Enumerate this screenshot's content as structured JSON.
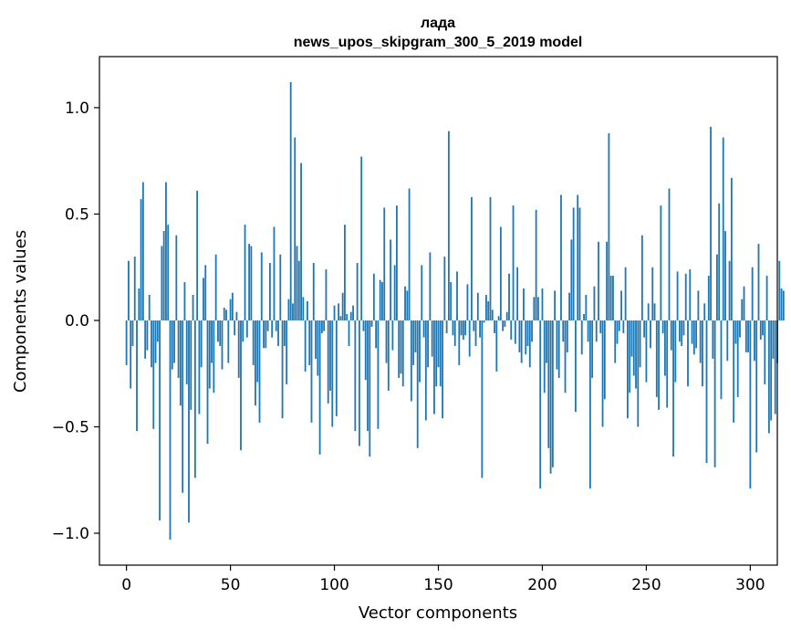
{
  "chart_data": {
    "type": "bar",
    "title": "лада",
    "subtitle": "news_upos_skipgram_300_5_2019 model",
    "xlabel": "Vector components",
    "ylabel": "Components values",
    "xlim": [
      -13,
      313
    ],
    "ylim": [
      -1.15,
      1.24
    ],
    "x_ticks": [
      0,
      50,
      100,
      150,
      200,
      250,
      300
    ],
    "y_ticks": [
      -1.0,
      -0.5,
      0.0,
      0.5,
      1.0
    ],
    "x_tick_labels": [
      "0",
      "50",
      "100",
      "150",
      "200",
      "250",
      "300"
    ],
    "y_tick_labels": [
      "−1.0",
      "−0.5",
      "0.0",
      "0.5",
      "1.0"
    ],
    "bar_color": "#1f77b4",
    "grid": false,
    "values": [
      -0.21,
      0.28,
      -0.32,
      -0.12,
      0.3,
      -0.52,
      0.15,
      0.57,
      0.65,
      -0.18,
      -0.14,
      0.12,
      -0.22,
      -0.51,
      -0.2,
      -0.1,
      -0.94,
      0.35,
      0.42,
      0.65,
      0.45,
      -1.03,
      -0.23,
      -0.2,
      0.4,
      -0.27,
      -0.4,
      -0.81,
      0.18,
      -0.3,
      -0.95,
      -0.42,
      0.12,
      -0.74,
      0.61,
      -0.44,
      -0.22,
      0.2,
      0.26,
      -0.58,
      -0.32,
      -0.2,
      -0.34,
      0.31,
      -0.1,
      -0.12,
      -0.23,
      0.06,
      0.05,
      -0.2,
      0.1,
      0.13,
      -0.07,
      0.04,
      -0.27,
      -0.61,
      -0.1,
      0.45,
      -0.08,
      0.36,
      0.35,
      -0.21,
      -0.4,
      -0.29,
      -0.48,
      0.32,
      -0.13,
      -0.13,
      -0.05,
      0.27,
      -0.08,
      0.44,
      -0.05,
      -0.12,
      0.31,
      -0.46,
      -0.12,
      -0.3,
      0.1,
      1.12,
      0.08,
      0.86,
      0.35,
      0.28,
      0.74,
      0.11,
      -0.24,
      0.09,
      -0.21,
      -0.48,
      0.27,
      -0.18,
      -0.26,
      -0.63,
      -0.06,
      -0.05,
      0.24,
      -0.39,
      -0.33,
      -0.5,
      0.07,
      -0.45,
      0.08,
      0.02,
      0.13,
      0.45,
      0.03,
      -0.12,
      0.04,
      0.07,
      -0.52,
      0.27,
      -0.59,
      0.77,
      -0.05,
      -0.28,
      -0.52,
      -0.64,
      -0.03,
      0.22,
      -0.13,
      -0.51,
      0.19,
      0.18,
      0.53,
      -0.2,
      -0.33,
      0.38,
      -0.14,
      0.26,
      0.54,
      -0.27,
      -0.25,
      -0.31,
      0.16,
      0.14,
      0.62,
      -0.38,
      -0.21,
      -0.15,
      -0.6,
      -0.29,
      0.26,
      -0.08,
      -0.47,
      -0.22,
      0.32,
      -0.17,
      -0.44,
      -0.31,
      -0.22,
      -0.31,
      -0.46,
      0.3,
      -0.06,
      0.89,
      0.18,
      -0.07,
      -0.12,
      0.23,
      -0.21,
      -0.07,
      -0.09,
      -0.07,
      0.17,
      -0.17,
      0.58,
      -0.05,
      -0.12,
      0.13,
      -0.08,
      -0.74,
      -0.01,
      0.12,
      0.09,
      0.58,
      0.05,
      -0.06,
      -0.24,
      0.02,
      0.44,
      -0.05,
      -0.03,
      0.04,
      0.22,
      -0.09,
      0.54,
      -0.11,
      0.25,
      -0.15,
      -0.2,
      0.15,
      -0.16,
      -0.12,
      -0.22,
      -0.1,
      0.11,
      0.52,
      0.11,
      -0.79,
      0.15,
      -0.34,
      -0.2,
      -0.6,
      -0.72,
      -0.69,
      0.14,
      -0.23,
      -0.27,
      0.59,
      -0.1,
      -0.34,
      -0.15,
      0.13,
      0.38,
      0.53,
      -0.43,
      0.59,
      0.53,
      -0.16,
      0.03,
      0.12,
      -0.1,
      -0.79,
      -0.27,
      0.16,
      -0.1,
      0.37,
      -0.06,
      -0.5,
      -0.37,
      0.37,
      0.88,
      0.21,
      0.21,
      -0.2,
      -0.11,
      -0.05,
      0.14,
      -0.06,
      0.25,
      -0.46,
      -0.34,
      -0.17,
      -0.26,
      -0.32,
      -0.5,
      -0.22,
      0.4,
      -0.08,
      -0.29,
      0.08,
      -0.13,
      0.25,
      0.08,
      -0.36,
      -0.42,
      0.54,
      -0.06,
      -0.26,
      -0.41,
      0.62,
      -0.14,
      -0.64,
      -0.29,
      0.23,
      -0.1,
      -0.12,
      -0.07,
      0.22,
      -0.31,
      0.24,
      -0.11,
      -0.16,
      -0.13,
      0.14,
      -0.2,
      -0.31,
      0.08,
      -0.67,
      0.21,
      0.91,
      -0.18,
      -0.69,
      0.31,
      0.55,
      -0.37,
      0.86,
      0.42,
      -0.19,
      0.28,
      0.67,
      -0.48,
      -0.11,
      -0.36,
      -0.08,
      0.1,
      0.16,
      -0.15,
      -0.15,
      -0.79,
      0.25,
      -0.19,
      -0.62,
      0.36,
      -0.09,
      -0.07,
      -0.3,
      0.21,
      -0.53,
      -0.47,
      -0.18,
      -0.44,
      -0.2,
      0.28,
      0.15,
      0.14
    ]
  }
}
